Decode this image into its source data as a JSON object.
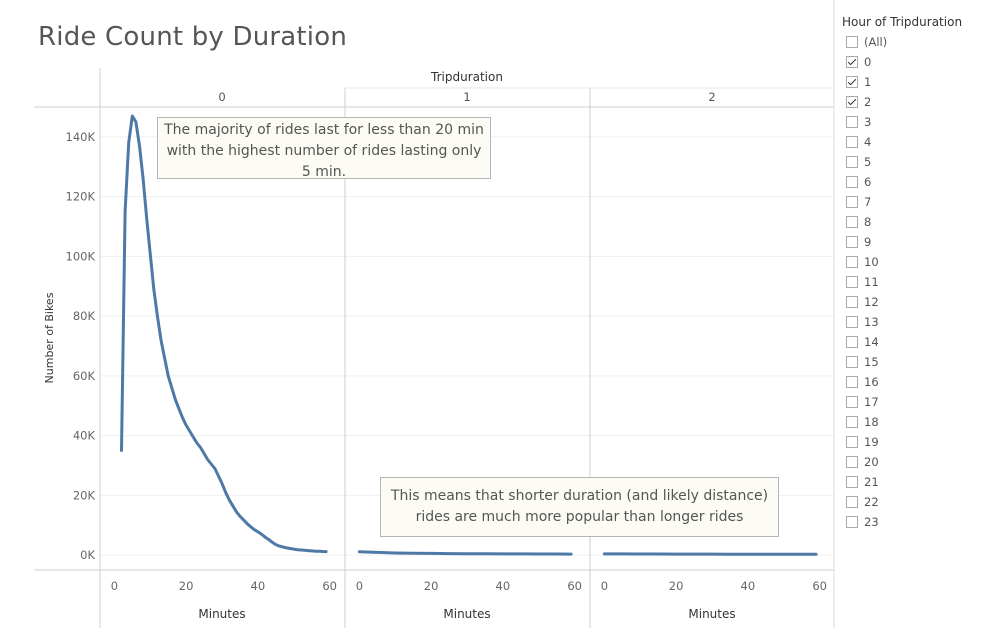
{
  "title": "Ride Count by Duration",
  "chart_data": {
    "type": "line",
    "column_header": "Tripduration",
    "panels": [
      {
        "label": "0",
        "x": [
          2,
          3,
          4,
          5,
          6,
          7,
          8,
          9,
          10,
          11,
          12,
          13,
          14,
          15,
          16,
          17,
          18,
          19,
          20,
          21,
          22,
          23,
          24,
          25,
          26,
          27,
          28,
          29,
          30,
          31,
          32,
          33,
          34,
          35,
          36,
          37,
          38,
          39,
          40,
          41,
          42,
          43,
          44,
          45,
          46,
          47,
          48,
          49,
          50,
          51,
          52,
          53,
          54,
          55,
          56,
          57,
          58,
          59
        ],
        "values": [
          35000,
          115000,
          138000,
          147000,
          145000,
          137000,
          126000,
          113000,
          101000,
          89000,
          80000,
          72000,
          66000,
          60000,
          56000,
          52000,
          49000,
          46000,
          43500,
          41500,
          39500,
          37500,
          36000,
          34000,
          32000,
          30500,
          29000,
          26500,
          24000,
          21000,
          18500,
          16500,
          14500,
          13000,
          11800,
          10500,
          9500,
          8500,
          7800,
          7000,
          6000,
          5200,
          4300,
          3500,
          3000,
          2700,
          2400,
          2200,
          2000,
          1800,
          1700,
          1600,
          1500,
          1400,
          1300,
          1250,
          1200,
          1150
        ]
      },
      {
        "label": "1",
        "x": [
          0,
          5,
          10,
          15,
          20,
          25,
          30,
          35,
          40,
          45,
          50,
          55,
          59
        ],
        "values": [
          1100,
          900,
          700,
          600,
          550,
          500,
          450,
          420,
          400,
          380,
          360,
          340,
          320
        ]
      },
      {
        "label": "2",
        "x": [
          0,
          5,
          10,
          15,
          20,
          25,
          30,
          35,
          40,
          45,
          50,
          55,
          59
        ],
        "values": [
          400,
          380,
          360,
          340,
          330,
          320,
          310,
          300,
          290,
          280,
          270,
          260,
          250
        ]
      }
    ],
    "xlabel": "Minutes",
    "ylabel": "Number of Bikes",
    "x_ticks": [
      "0",
      "20",
      "40",
      "60"
    ],
    "x_tick_values": [
      0,
      20,
      40,
      60
    ],
    "xlim": [
      -4,
      64
    ],
    "y_ticks": [
      "0K",
      "20K",
      "40K",
      "60K",
      "80K",
      "100K",
      "120K",
      "140K"
    ],
    "y_tick_values": [
      0,
      20000,
      40000,
      60000,
      80000,
      100000,
      120000,
      140000
    ],
    "ylim": [
      -5000,
      150000
    ],
    "line_color": "#4e79a7"
  },
  "annotations": [
    {
      "text": "The majority of rides last for less than 20 min with the highest number of rides lasting only 5 min."
    },
    {
      "text": "This means that shorter duration (and likely distance) rides are much more popular than longer rides"
    }
  ],
  "filter": {
    "title": "Hour of Tripduration",
    "options": [
      {
        "label": "(All)",
        "checked": false
      },
      {
        "label": "0",
        "checked": true
      },
      {
        "label": "1",
        "checked": true
      },
      {
        "label": "2",
        "checked": true
      },
      {
        "label": "3",
        "checked": false
      },
      {
        "label": "4",
        "checked": false
      },
      {
        "label": "5",
        "checked": false
      },
      {
        "label": "6",
        "checked": false
      },
      {
        "label": "7",
        "checked": false
      },
      {
        "label": "8",
        "checked": false
      },
      {
        "label": "9",
        "checked": false
      },
      {
        "label": "10",
        "checked": false
      },
      {
        "label": "11",
        "checked": false
      },
      {
        "label": "12",
        "checked": false
      },
      {
        "label": "13",
        "checked": false
      },
      {
        "label": "14",
        "checked": false
      },
      {
        "label": "15",
        "checked": false
      },
      {
        "label": "16",
        "checked": false
      },
      {
        "label": "17",
        "checked": false
      },
      {
        "label": "18",
        "checked": false
      },
      {
        "label": "19",
        "checked": false
      },
      {
        "label": "20",
        "checked": false
      },
      {
        "label": "21",
        "checked": false
      },
      {
        "label": "22",
        "checked": false
      },
      {
        "label": "23",
        "checked": false
      }
    ]
  }
}
